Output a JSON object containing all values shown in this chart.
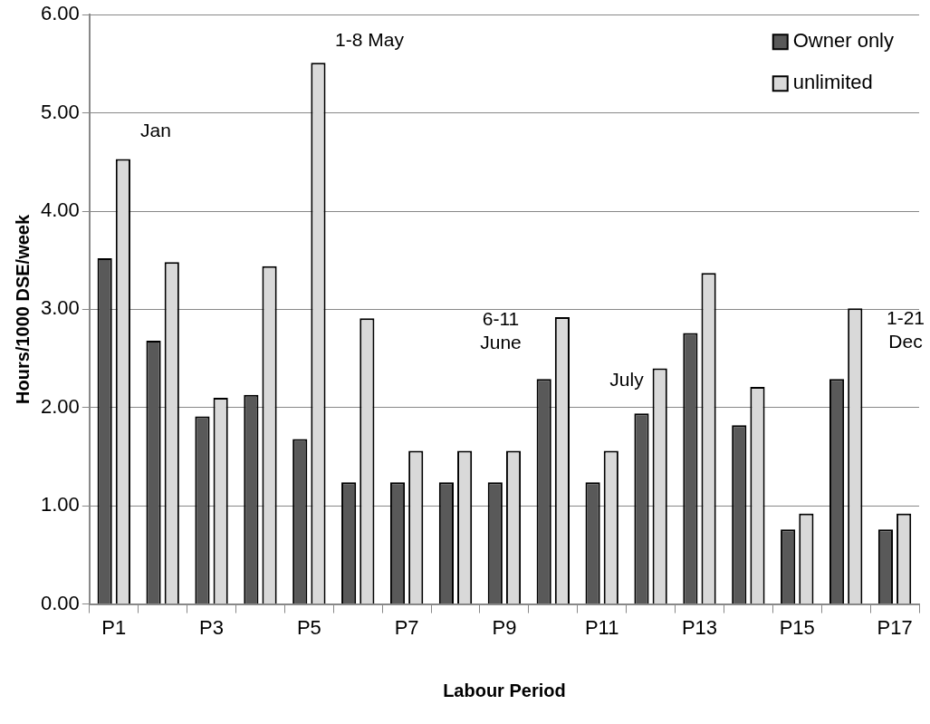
{
  "chart_data": {
    "type": "bar",
    "xlabel": "Labour Period",
    "ylabel": "Hours/1000 DSE/week",
    "categories": [
      "P1",
      null,
      "P3",
      null,
      "P5",
      null,
      "P7",
      null,
      "P9",
      null,
      "P11",
      null,
      "P13",
      null,
      "P15",
      null,
      "P17"
    ],
    "series": [
      {
        "name": "Owner only",
        "color": "#595959",
        "values": [
          3.52,
          2.68,
          1.91,
          2.13,
          1.68,
          1.24,
          1.24,
          1.24,
          1.24,
          2.29,
          1.24,
          1.94,
          2.76,
          1.82,
          0.76,
          2.29,
          0.76
        ]
      },
      {
        "name": "unlimited",
        "color": "#d9d9d9",
        "values": [
          4.53,
          3.48,
          2.1,
          3.44,
          5.51,
          2.91,
          1.56,
          1.56,
          1.56,
          2.92,
          1.56,
          2.4,
          3.37,
          2.21,
          0.92,
          3.01,
          0.92
        ]
      }
    ],
    "ylim": [
      0,
      6
    ],
    "yticks": [
      {
        "value": 0,
        "label": "0.00"
      },
      {
        "value": 1,
        "label": "1.00"
      },
      {
        "value": 2,
        "label": "2.00"
      },
      {
        "value": 3,
        "label": "3.00"
      },
      {
        "value": 4,
        "label": "4.00"
      },
      {
        "value": 5,
        "label": "5.00"
      },
      {
        "value": 6,
        "label": "6.00"
      }
    ],
    "grid": "y",
    "legend": "top right",
    "annotations": [
      "Jan",
      "1-8 May",
      "6-11\nJune",
      "July",
      "1-21\nDec"
    ]
  }
}
